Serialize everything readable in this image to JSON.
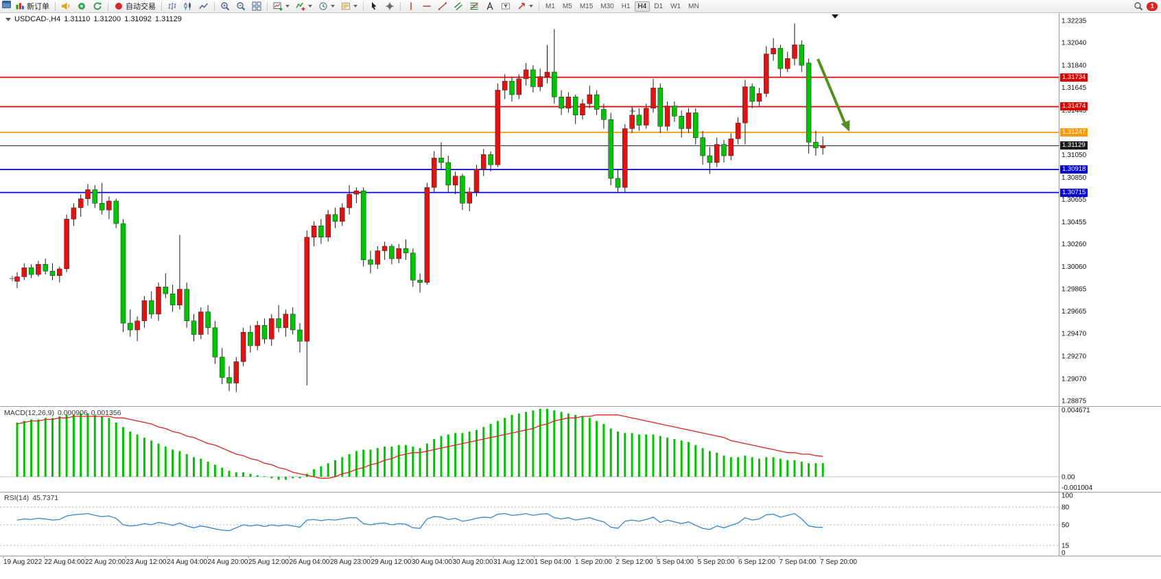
{
  "toolbar": {
    "new_order_label": "新订单",
    "auto_trading_label": "自动交易",
    "timeframes": [
      "M1",
      "M5",
      "M15",
      "M30",
      "H1",
      "H4",
      "D1",
      "W1",
      "MN"
    ],
    "active_timeframe": "H4",
    "notification_count": "1"
  },
  "chart": {
    "title": {
      "symbol": "USDCAD-,H4",
      "open": "1.31110",
      "high": "1.31200",
      "low": "1.31092",
      "close": "1.31129"
    },
    "price_scale": [
      "1.32235",
      "1.32040",
      "1.31840",
      "1.31645",
      "1.31445",
      "1.31250",
      "1.31050",
      "1.30850",
      "1.30655",
      "1.30455",
      "1.30260",
      "1.30060",
      "1.29865",
      "1.29665",
      "1.29470",
      "1.29270",
      "1.29070",
      "1.28875"
    ],
    "levels": [
      {
        "value": 1.31734,
        "label": "1.31734",
        "color": "#e00000"
      },
      {
        "value": 1.31474,
        "label": "1.31474",
        "color": "#e00000"
      },
      {
        "value": 1.31247,
        "label": "1.31247",
        "color": "#ff9800"
      },
      {
        "value": 1.31129,
        "label": "1.31129",
        "color": "#1a1a1a"
      },
      {
        "value": 1.30918,
        "label": "1.30918",
        "color": "#0000dd"
      },
      {
        "value": 1.30715,
        "label": "1.30715",
        "color": "#0000dd"
      }
    ],
    "time_scale": [
      "19 Aug 2022",
      "22 Aug 04:00",
      "22 Aug 20:00",
      "23 Aug 12:00",
      "24 Aug 04:00",
      "24 Aug 20:00",
      "25 Aug 12:00",
      "26 Aug 04:00",
      "28 Aug 23:00",
      "29 Aug 12:00",
      "30 Aug 04:00",
      "30 Aug 20:00",
      "31 Aug 12:00",
      "1 Sep 04:00",
      "1 Sep 20:00",
      "2 Sep 12:00",
      "5 Sep 04:00",
      "5 Sep 20:00",
      "6 Sep 12:00",
      "7 Sep 04:00",
      "7 Sep 20:00"
    ],
    "colors": {
      "bull": "#e31212",
      "bear": "#00c400",
      "wick": "#1a1a1a",
      "macd_hist": "#00c400",
      "macd_signal": "#e02020",
      "rsi_line": "#2e86d0",
      "arrow": "#55901e"
    },
    "candles": [
      [
        1.2993,
        1.3001,
        1.2987,
        1.2997
      ],
      [
        1.2997,
        1.3009,
        1.2994,
        1.3005
      ],
      [
        1.3005,
        1.3008,
        1.2996,
        1.2999
      ],
      [
        1.2999,
        1.3011,
        1.2997,
        1.3008
      ],
      [
        1.3008,
        1.3013,
        1.2999,
        1.3002
      ],
      [
        1.3002,
        1.3009,
        1.2994,
        1.2998
      ],
      [
        1.2998,
        1.3006,
        1.2992,
        1.3004
      ],
      [
        1.3004,
        1.3052,
        1.3001,
        1.3048
      ],
      [
        1.3048,
        1.3062,
        1.3042,
        1.3058
      ],
      [
        1.3058,
        1.307,
        1.305,
        1.3066
      ],
      [
        1.3066,
        1.3079,
        1.306,
        1.3074
      ],
      [
        1.3074,
        1.3078,
        1.3058,
        1.3062
      ],
      [
        1.3062,
        1.308,
        1.3052,
        1.3056
      ],
      [
        1.3056,
        1.3068,
        1.3048,
        1.3064
      ],
      [
        1.3064,
        1.3066,
        1.304,
        1.3044
      ],
      [
        1.3044,
        1.3048,
        1.2948,
        1.2956
      ],
      [
        1.2956,
        1.2968,
        1.2944,
        1.295
      ],
      [
        1.295,
        1.2962,
        1.294,
        1.2958
      ],
      [
        1.2958,
        1.298,
        1.2952,
        1.2976
      ],
      [
        1.2976,
        1.2984,
        1.296,
        1.2964
      ],
      [
        1.2964,
        1.2992,
        1.2958,
        1.2988
      ],
      [
        1.2988,
        1.3,
        1.2978,
        1.2982
      ],
      [
        1.2982,
        1.299,
        1.2966,
        1.2972
      ],
      [
        1.2972,
        1.3034,
        1.2968,
        1.2986
      ],
      [
        1.2986,
        1.2992,
        1.2952,
        1.2958
      ],
      [
        1.2958,
        1.2964,
        1.294,
        1.2946
      ],
      [
        1.2946,
        1.297,
        1.2942,
        1.2966
      ],
      [
        1.2966,
        1.2972,
        1.2946,
        1.2952
      ],
      [
        1.2952,
        1.2958,
        1.292,
        1.2926
      ],
      [
        1.2926,
        1.2934,
        1.2902,
        1.2908
      ],
      [
        1.2908,
        1.2918,
        1.2896,
        1.2903
      ],
      [
        1.2903,
        1.2926,
        1.2895,
        1.2922
      ],
      [
        1.2922,
        1.2952,
        1.2918,
        1.2948
      ],
      [
        1.2948,
        1.2954,
        1.293,
        1.2936
      ],
      [
        1.2936,
        1.2958,
        1.2932,
        1.2954
      ],
      [
        1.2954,
        1.296,
        1.2938,
        1.2942
      ],
      [
        1.2942,
        1.2964,
        1.2936,
        1.296
      ],
      [
        1.296,
        1.2972,
        1.2948,
        1.2952
      ],
      [
        1.2952,
        1.2968,
        1.2944,
        1.2964
      ],
      [
        1.2964,
        1.297,
        1.2946,
        1.295
      ],
      [
        1.295,
        1.2956,
        1.293,
        1.294
      ],
      [
        1.294,
        1.3038,
        1.2901,
        1.3032
      ],
      [
        1.3032,
        1.3046,
        1.3024,
        1.3042
      ],
      [
        1.3042,
        1.3048,
        1.3026,
        1.3032
      ],
      [
        1.3032,
        1.3056,
        1.3028,
        1.3052
      ],
      [
        1.3052,
        1.3058,
        1.304,
        1.3046
      ],
      [
        1.3046,
        1.3062,
        1.3042,
        1.3058
      ],
      [
        1.3058,
        1.3078,
        1.3052,
        1.307
      ],
      [
        1.307,
        1.3076,
        1.3062,
        1.3073
      ],
      [
        1.3073,
        1.3076,
        1.3006,
        1.3012
      ],
      [
        1.3012,
        1.302,
        1.3,
        1.3008
      ],
      [
        1.3008,
        1.3024,
        1.3004,
        1.302
      ],
      [
        1.302,
        1.3028,
        1.3012,
        1.3024
      ],
      [
        1.3024,
        1.3026,
        1.3008,
        1.3013
      ],
      [
        1.3013,
        1.3026,
        1.3009,
        1.3022
      ],
      [
        1.3022,
        1.303,
        1.3012,
        1.3018
      ],
      [
        1.3018,
        1.3022,
        1.2988,
        1.2994
      ],
      [
        1.2994,
        1.3,
        1.2983,
        1.2992
      ],
      [
        1.2992,
        1.308,
        1.299,
        1.3076
      ],
      [
        1.3076,
        1.3108,
        1.3072,
        1.3102
      ],
      [
        1.3102,
        1.3116,
        1.3092,
        1.3098
      ],
      [
        1.3098,
        1.3104,
        1.3072,
        1.3078
      ],
      [
        1.3078,
        1.309,
        1.307,
        1.3086
      ],
      [
        1.3086,
        1.3088,
        1.3056,
        1.3062
      ],
      [
        1.3062,
        1.3076,
        1.3055,
        1.3072
      ],
      [
        1.3072,
        1.3096,
        1.3068,
        1.3092
      ],
      [
        1.3092,
        1.311,
        1.3086,
        1.3105
      ],
      [
        1.3105,
        1.3108,
        1.309,
        1.3096
      ],
      [
        1.3096,
        1.3168,
        1.3094,
        1.3162
      ],
      [
        1.3162,
        1.3176,
        1.3154,
        1.317
      ],
      [
        1.317,
        1.3174,
        1.3152,
        1.3158
      ],
      [
        1.3158,
        1.3176,
        1.3154,
        1.3172
      ],
      [
        1.3172,
        1.3186,
        1.3166,
        1.318
      ],
      [
        1.318,
        1.3184,
        1.316,
        1.3165
      ],
      [
        1.3165,
        1.3181,
        1.3161,
        1.3174
      ],
      [
        1.3174,
        1.3202,
        1.3168,
        1.3178
      ],
      [
        1.3178,
        1.3216,
        1.315,
        1.3156
      ],
      [
        1.3156,
        1.3162,
        1.314,
        1.3146
      ],
      [
        1.3146,
        1.316,
        1.3142,
        1.3156
      ],
      [
        1.3156,
        1.3158,
        1.3132,
        1.314
      ],
      [
        1.314,
        1.3154,
        1.3136,
        1.315
      ],
      [
        1.315,
        1.3166,
        1.3146,
        1.3158
      ],
      [
        1.3158,
        1.3162,
        1.314,
        1.3145
      ],
      [
        1.3145,
        1.315,
        1.3128,
        1.3136
      ],
      [
        1.3136,
        1.3142,
        1.3078,
        1.3084
      ],
      [
        1.3084,
        1.3092,
        1.3072,
        1.3076
      ],
      [
        1.3076,
        1.3132,
        1.3072,
        1.3128
      ],
      [
        1.3128,
        1.3148,
        1.3124,
        1.314
      ],
      [
        1.314,
        1.3146,
        1.3126,
        1.3131
      ],
      [
        1.3131,
        1.315,
        1.3128,
        1.3146
      ],
      [
        1.3146,
        1.3172,
        1.3142,
        1.3164
      ],
      [
        1.3164,
        1.3168,
        1.3124,
        1.313
      ],
      [
        1.313,
        1.3152,
        1.3126,
        1.3148
      ],
      [
        1.3148,
        1.3152,
        1.3134,
        1.3139
      ],
      [
        1.3139,
        1.3144,
        1.312,
        1.3128
      ],
      [
        1.3128,
        1.3146,
        1.3124,
        1.3142
      ],
      [
        1.3142,
        1.3146,
        1.3114,
        1.312
      ],
      [
        1.312,
        1.3126,
        1.3096,
        1.3104
      ],
      [
        1.3104,
        1.3112,
        1.3088,
        1.3098
      ],
      [
        1.3098,
        1.312,
        1.3094,
        1.3114
      ],
      [
        1.3114,
        1.3118,
        1.3098,
        1.3104
      ],
      [
        1.3104,
        1.3124,
        1.31,
        1.3119
      ],
      [
        1.3119,
        1.3138,
        1.3114,
        1.3133
      ],
      [
        1.3133,
        1.3171,
        1.3114,
        1.3165
      ],
      [
        1.3165,
        1.3168,
        1.3146,
        1.3152
      ],
      [
        1.3152,
        1.3164,
        1.3148,
        1.3159
      ],
      [
        1.3159,
        1.3201,
        1.3156,
        1.3194
      ],
      [
        1.3194,
        1.3208,
        1.3188,
        1.3199
      ],
      [
        1.3199,
        1.3202,
        1.3174,
        1.3181
      ],
      [
        1.3181,
        1.3196,
        1.3178,
        1.319
      ],
      [
        1.319,
        1.3221,
        1.3184,
        1.3202
      ],
      [
        1.3202,
        1.3206,
        1.3178,
        1.3184
      ],
      [
        1.3186,
        1.319,
        1.3106,
        1.3116
      ],
      [
        1.3116,
        1.3126,
        1.3104,
        1.3111
      ],
      [
        1.3111,
        1.3121,
        1.3105,
        1.31129
      ]
    ]
  },
  "macd": {
    "label": "MACD(12,26,9)",
    "value_main": "0.000906",
    "value_signal": "0.001356",
    "scale": [
      "0.004671",
      "0.00",
      "-0.001004"
    ],
    "histogram": [
      0.0036,
      0.0037,
      0.0038,
      0.0038,
      0.0039,
      0.0039,
      0.004,
      0.0041,
      0.0041,
      0.0042,
      0.0042,
      0.0041,
      0.004,
      0.0039,
      0.0036,
      0.0033,
      0.003,
      0.0028,
      0.0026,
      0.0024,
      0.0022,
      0.002,
      0.0018,
      0.0017,
      0.0015,
      0.0013,
      0.0012,
      0.001,
      0.0008,
      0.0006,
      0.0004,
      0.0003,
      0.0003,
      0.0002,
      0.0001,
      0.0,
      -0.0001,
      -0.0002,
      -0.0002,
      -0.0001,
      -0.0001,
      0.0002,
      0.0005,
      0.0007,
      0.0009,
      0.0011,
      0.0013,
      0.0015,
      0.0017,
      0.0018,
      0.0018,
      0.0019,
      0.002,
      0.002,
      0.0021,
      0.0021,
      0.002,
      0.0019,
      0.0022,
      0.0025,
      0.0027,
      0.0028,
      0.0029,
      0.0029,
      0.003,
      0.0031,
      0.0033,
      0.0035,
      0.0037,
      0.0039,
      0.0041,
      0.0042,
      0.0043,
      0.0044,
      0.0045,
      0.0045,
      0.0044,
      0.0043,
      0.0042,
      0.0041,
      0.004,
      0.0039,
      0.0037,
      0.0035,
      0.0032,
      0.003,
      0.0029,
      0.0029,
      0.0028,
      0.0028,
      0.0028,
      0.0027,
      0.0026,
      0.0025,
      0.0024,
      0.0023,
      0.0021,
      0.0019,
      0.0017,
      0.0016,
      0.0014,
      0.0013,
      0.0013,
      0.0014,
      0.0013,
      0.0012,
      0.0013,
      0.0013,
      0.0012,
      0.0011,
      0.0011,
      0.001,
      0.0009,
      0.0009,
      0.000906
    ],
    "signal": [
      0.0035,
      0.0036,
      0.0037,
      0.0037,
      0.0038,
      0.0038,
      0.0039,
      0.0039,
      0.004,
      0.004,
      0.004,
      0.004,
      0.004,
      0.004,
      0.0039,
      0.0039,
      0.0038,
      0.0037,
      0.0036,
      0.0035,
      0.0033,
      0.0032,
      0.003,
      0.0029,
      0.0027,
      0.0026,
      0.0024,
      0.0022,
      0.0021,
      0.0019,
      0.0017,
      0.0015,
      0.0014,
      0.0012,
      0.0011,
      0.0009,
      0.0008,
      0.0006,
      0.0005,
      0.0003,
      0.0002,
      0.0001,
      0.0,
      -0.0001,
      -0.0001,
      0.0,
      0.0002,
      0.0003,
      0.0005,
      0.0006,
      0.0008,
      0.0009,
      0.0011,
      0.0012,
      0.0014,
      0.0015,
      0.0016,
      0.0016,
      0.0017,
      0.0018,
      0.0019,
      0.002,
      0.0021,
      0.0022,
      0.0023,
      0.0024,
      0.0025,
      0.0026,
      0.0027,
      0.0028,
      0.0029,
      0.003,
      0.0031,
      0.0032,
      0.0034,
      0.0035,
      0.0037,
      0.0038,
      0.0039,
      0.0039,
      0.004,
      0.004,
      0.0041,
      0.0041,
      0.0041,
      0.0041,
      0.004,
      0.0039,
      0.0038,
      0.0037,
      0.0036,
      0.0035,
      0.0034,
      0.0033,
      0.0032,
      0.0031,
      0.003,
      0.0029,
      0.0028,
      0.0027,
      0.0026,
      0.0024,
      0.0023,
      0.0022,
      0.0021,
      0.002,
      0.0019,
      0.0018,
      0.0017,
      0.0016,
      0.0016,
      0.0015,
      0.0015,
      0.0014,
      0.001356
    ]
  },
  "rsi": {
    "label": "RSI(14)",
    "value": "45.7371",
    "scale": [
      "100",
      "80",
      "50",
      "15",
      "0"
    ],
    "levels": [
      80,
      50,
      15
    ],
    "values": [
      58,
      60,
      59,
      61,
      60,
      58,
      59,
      65,
      67,
      68,
      69,
      66,
      64,
      65,
      61,
      50,
      48,
      49,
      52,
      50,
      54,
      52,
      49,
      53,
      48,
      45,
      48,
      46,
      43,
      41,
      40,
      45,
      50,
      48,
      50,
      47,
      50,
      48,
      50,
      48,
      46,
      58,
      59,
      57,
      59,
      58,
      60,
      62,
      62,
      52,
      50,
      52,
      53,
      50,
      52,
      51,
      45,
      44,
      60,
      64,
      63,
      59,
      61,
      56,
      58,
      61,
      63,
      62,
      68,
      69,
      66,
      67,
      69,
      66,
      68,
      69,
      62,
      60,
      62,
      58,
      60,
      62,
      58,
      55,
      46,
      44,
      56,
      58,
      56,
      59,
      63,
      54,
      58,
      55,
      52,
      55,
      49,
      44,
      42,
      48,
      45,
      49,
      53,
      62,
      58,
      60,
      67,
      68,
      63,
      66,
      69,
      60,
      48,
      46,
      45.74
    ]
  }
}
